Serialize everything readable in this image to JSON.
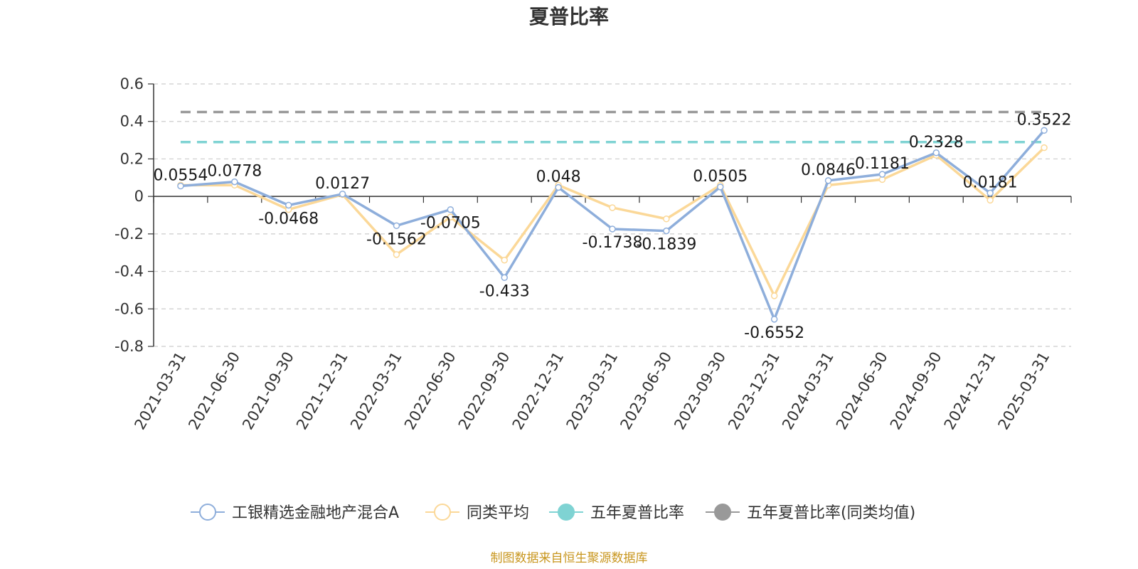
{
  "chart_data": {
    "type": "line",
    "title": "夏普比率",
    "xlabel": "",
    "ylabel": "",
    "categories": [
      "2021-03-31",
      "2021-06-30",
      "2021-09-30",
      "2021-12-31",
      "2022-03-31",
      "2022-06-30",
      "2022-09-30",
      "2022-12-31",
      "2023-03-31",
      "2023-06-30",
      "2023-09-30",
      "2023-12-31",
      "2024-03-31",
      "2024-06-30",
      "2024-09-30",
      "2024-12-31",
      "2025-03-31"
    ],
    "ylim": [
      -0.8,
      0.6
    ],
    "yticks": [
      "0.6",
      "0.4",
      "0.2",
      "0",
      "-0.2",
      "-0.4",
      "-0.6",
      "-0.8"
    ],
    "grid": true,
    "legend_position": "bottom",
    "series": [
      {
        "name": "工银精选金融地产混合A",
        "color": "#8eaedb",
        "values": [
          0.0554,
          0.0778,
          -0.0468,
          0.0127,
          -0.1562,
          -0.0705,
          -0.433,
          0.048,
          -0.1738,
          -0.1839,
          0.0505,
          -0.6552,
          0.0846,
          0.1181,
          0.2328,
          0.0181,
          0.3522
        ],
        "labels": [
          "0.0554",
          "0.0778",
          "-0.0468",
          "0.0127",
          "-0.1562",
          "-0.0705",
          "-0.433",
          "0.048",
          "-0.1738",
          "-0.1839",
          "0.0505",
          "-0.6552",
          "0.0846",
          "0.1181",
          "0.2328",
          "0.0181",
          "0.3522"
        ]
      },
      {
        "name": "同类平均",
        "color": "#fbd898",
        "values": [
          0.06,
          0.06,
          -0.07,
          0.01,
          -0.31,
          -0.11,
          -0.34,
          0.06,
          -0.06,
          -0.12,
          0.06,
          -0.53,
          0.06,
          0.09,
          0.22,
          -0.02,
          0.26
        ]
      },
      {
        "name": "五年夏普比率",
        "color": "#7fd3d3",
        "constant": 0.29
      },
      {
        "name": "五年夏普比率(同类均值)",
        "color": "#999999",
        "constant": 0.45
      }
    ],
    "source": "制图数据来自恒生聚源数据库"
  }
}
